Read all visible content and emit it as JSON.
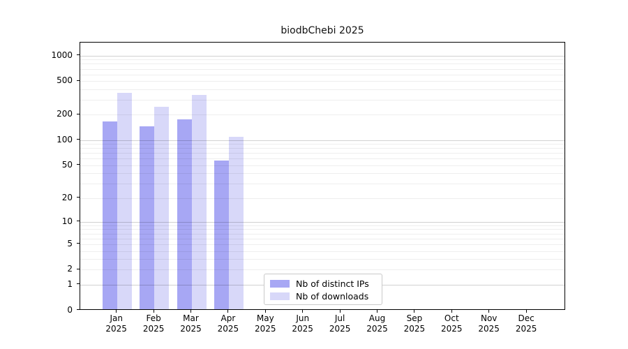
{
  "title": "biodbChebi 2025",
  "chart_data": {
    "type": "bar",
    "title": "biodbChebi 2025",
    "categories": [
      "Jan",
      "Feb",
      "Mar",
      "Apr",
      "May",
      "Jun",
      "Jul",
      "Aug",
      "Sep",
      "Oct",
      "Nov",
      "Dec"
    ],
    "year_label": "2025",
    "series": [
      {
        "name": "Nb of distinct IPs",
        "color": "#a7a7f4",
        "values": [
          160,
          140,
          170,
          55,
          0,
          0,
          0,
          0,
          0,
          0,
          0,
          0
        ]
      },
      {
        "name": "Nb of downloads",
        "color": "#d8d8f9",
        "values": [
          350,
          240,
          330,
          105,
          0,
          0,
          0,
          0,
          0,
          0,
          0,
          0
        ]
      }
    ],
    "y_ticks": [
      0,
      1,
      2,
      5,
      10,
      20,
      50,
      100,
      200,
      500,
      1000
    ],
    "y_scale": "log1p",
    "ylim": [
      0,
      1425
    ],
    "grid": "horizontal-major-and-minor",
    "legend_position": "lower-center",
    "axis_color": "#000000",
    "major_grid_color": "#d1d1d1",
    "minor_grid_color": "#ededed"
  }
}
